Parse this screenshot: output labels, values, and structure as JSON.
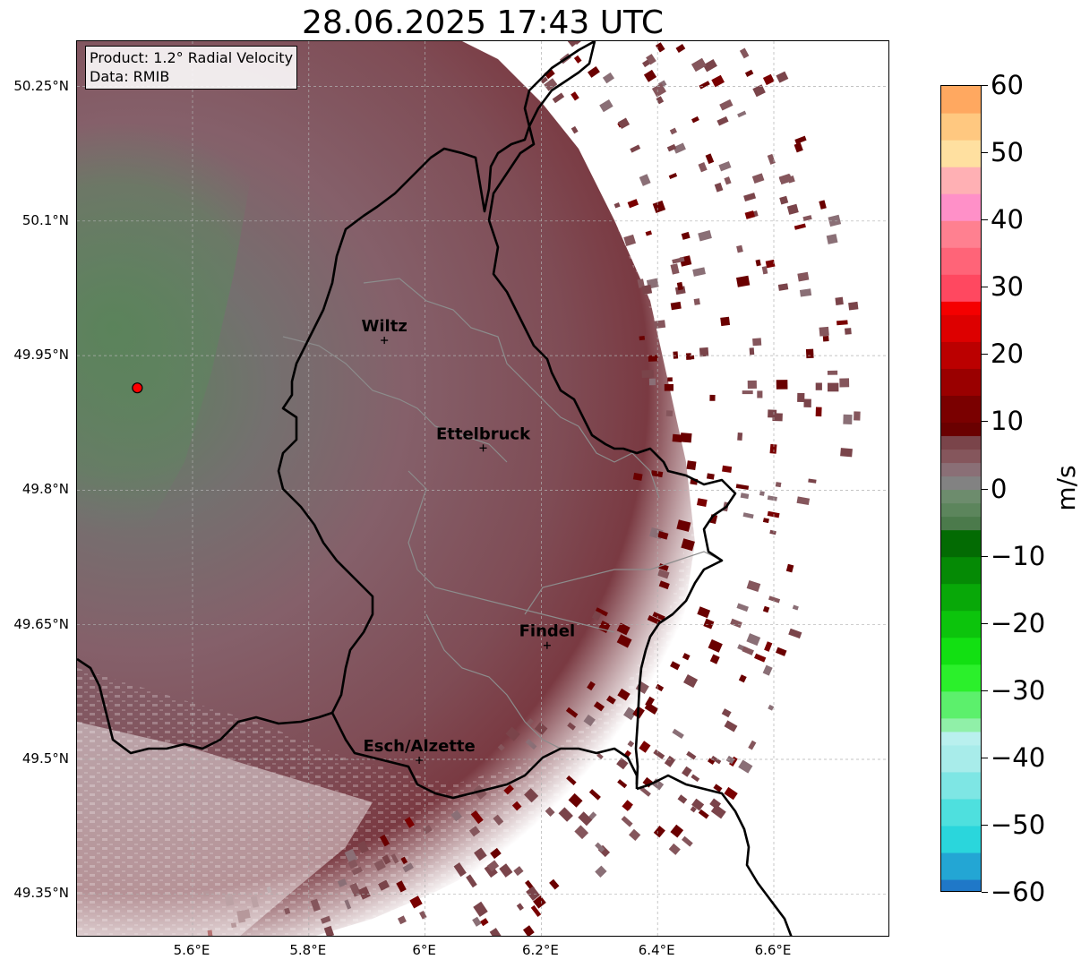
{
  "title": "28.06.2025 17:43 UTC",
  "info": {
    "product": "Product: 1.2° Radial Velocity",
    "source": "Data: RMIB"
  },
  "map": {
    "lon_range": [
      5.4,
      6.8
    ],
    "lat_range": [
      49.3,
      50.3
    ],
    "lat_ticks": [
      {
        "value": 50.25,
        "label": "50.25°N"
      },
      {
        "value": 50.1,
        "label": "50.1°N"
      },
      {
        "value": 49.95,
        "label": "49.95°N"
      },
      {
        "value": 49.8,
        "label": "49.8°N"
      },
      {
        "value": 49.65,
        "label": "49.65°N"
      },
      {
        "value": 49.5,
        "label": "49.5°N"
      },
      {
        "value": 49.35,
        "label": "49.35°N"
      }
    ],
    "lon_ticks": [
      {
        "value": 5.6,
        "label": "5.6°E"
      },
      {
        "value": 5.8,
        "label": "5.8°E"
      },
      {
        "value": 6.0,
        "label": "6°E"
      },
      {
        "value": 6.2,
        "label": "6.2°E"
      },
      {
        "value": 6.4,
        "label": "6.4°E"
      },
      {
        "value": 6.6,
        "label": "6.6°E"
      }
    ],
    "gridlines": true,
    "radar_site": {
      "lon": 5.505,
      "lat": 49.914
    },
    "cities": [
      {
        "name": "Wiltz",
        "lon": 5.93,
        "lat": 49.967
      },
      {
        "name": "Ettelbruck",
        "lon": 6.1,
        "lat": 49.847
      },
      {
        "name": "Findel",
        "lon": 6.21,
        "lat": 49.627
      },
      {
        "name": "Esch/Alzette",
        "lon": 5.99,
        "lat": 49.499
      }
    ],
    "colors": {
      "border": "#000000",
      "canton_lines": "#8c8c8c",
      "gridline": "#b0b0b0",
      "radar_marker": "#ff0000"
    }
  },
  "colorbar": {
    "label": "m/s",
    "min": -60,
    "max": 60,
    "ticks": [
      {
        "value": 60,
        "label": "60"
      },
      {
        "value": 50,
        "label": "50"
      },
      {
        "value": 40,
        "label": "40"
      },
      {
        "value": 30,
        "label": "30"
      },
      {
        "value": 20,
        "label": "20"
      },
      {
        "value": 10,
        "label": "10"
      },
      {
        "value": 0,
        "label": "0"
      },
      {
        "value": -10,
        "label": "−10"
      },
      {
        "value": -20,
        "label": "−20"
      },
      {
        "value": -30,
        "label": "−30"
      },
      {
        "value": -40,
        "label": "−40"
      },
      {
        "value": -50,
        "label": "−50"
      },
      {
        "value": -60,
        "label": "−60"
      }
    ],
    "stops": [
      {
        "from": -60,
        "to": -58,
        "color": "#1f78c8"
      },
      {
        "from": -58,
        "to": -54,
        "color": "#23a6d4"
      },
      {
        "from": -54,
        "to": -50,
        "color": "#2ad6dc"
      },
      {
        "from": -50,
        "to": -46,
        "color": "#4ee0de"
      },
      {
        "from": -46,
        "to": -42,
        "color": "#7ee6e4"
      },
      {
        "from": -42,
        "to": -38,
        "color": "#a8ecea"
      },
      {
        "from": -38,
        "to": -36,
        "color": "#b9f0ee"
      },
      {
        "from": -36,
        "to": -34,
        "color": "#90f0a8"
      },
      {
        "from": -34,
        "to": -30,
        "color": "#5cf06c"
      },
      {
        "from": -30,
        "to": -26,
        "color": "#2bf02b"
      },
      {
        "from": -26,
        "to": -22,
        "color": "#12e012"
      },
      {
        "from": -22,
        "to": -18,
        "color": "#0cc40c"
      },
      {
        "from": -18,
        "to": -14,
        "color": "#08a808"
      },
      {
        "from": -14,
        "to": -10,
        "color": "#058a05"
      },
      {
        "from": -10,
        "to": -6,
        "color": "#036b03"
      },
      {
        "from": -6,
        "to": -4,
        "color": "#4b7a4b"
      },
      {
        "from": -4,
        "to": -2,
        "color": "#5c855c"
      },
      {
        "from": -2,
        "to": 0,
        "color": "#6d8c6d"
      },
      {
        "from": 0,
        "to": 2,
        "color": "#828282"
      },
      {
        "from": 2,
        "to": 4,
        "color": "#8a6f76"
      },
      {
        "from": 4,
        "to": 6,
        "color": "#85565c"
      },
      {
        "from": 6,
        "to": 8,
        "color": "#7a444a"
      },
      {
        "from": 8,
        "to": 10,
        "color": "#6a0000"
      },
      {
        "from": 10,
        "to": 14,
        "color": "#7a0000"
      },
      {
        "from": 14,
        "to": 18,
        "color": "#9a0000"
      },
      {
        "from": 18,
        "to": 22,
        "color": "#bb0000"
      },
      {
        "from": 22,
        "to": 26,
        "color": "#dd0000"
      },
      {
        "from": 26,
        "to": 28,
        "color": "#f50000"
      },
      {
        "from": 28,
        "to": 32,
        "color": "#ff4860"
      },
      {
        "from": 32,
        "to": 36,
        "color": "#ff6478"
      },
      {
        "from": 36,
        "to": 40,
        "color": "#ff8090"
      },
      {
        "from": 40,
        "to": 44,
        "color": "#ff90c8"
      },
      {
        "from": 44,
        "to": 48,
        "color": "#ffb0b4"
      },
      {
        "from": 48,
        "to": 52,
        "color": "#ffe0a0"
      },
      {
        "from": 52,
        "to": 56,
        "color": "#ffc880"
      },
      {
        "from": 56,
        "to": 60,
        "color": "#ffa860"
      }
    ]
  }
}
